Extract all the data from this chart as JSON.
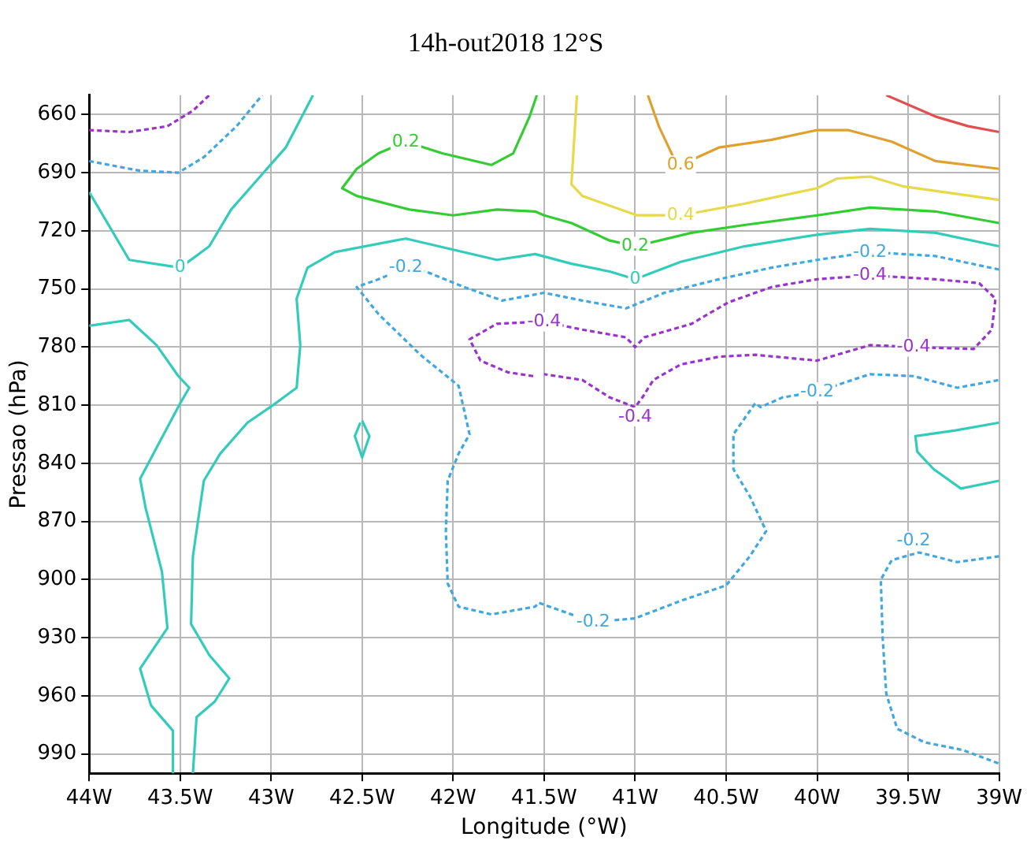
{
  "chart_data": {
    "type": "line",
    "title": "14h-out2018 12°S",
    "xlabel": "Longitude (°W)",
    "ylabel": "Pressao (hPa)",
    "xlim": [
      -44,
      -39
    ],
    "ylim": [
      1000,
      650
    ],
    "xticks": [
      {
        "value": -44,
        "label": "44W"
      },
      {
        "value": -43.5,
        "label": "43.5W"
      },
      {
        "value": -43,
        "label": "43W"
      },
      {
        "value": -42.5,
        "label": "42.5W"
      },
      {
        "value": -42,
        "label": "42W"
      },
      {
        "value": -41.5,
        "label": "41.5W"
      },
      {
        "value": -41,
        "label": "41W"
      },
      {
        "value": -40.5,
        "label": "40.5W"
      },
      {
        "value": -40,
        "label": "40W"
      },
      {
        "value": -39.5,
        "label": "39.5W"
      },
      {
        "value": -39,
        "label": "39W"
      }
    ],
    "yticks": [
      660,
      690,
      720,
      750,
      780,
      810,
      840,
      870,
      900,
      930,
      960,
      990
    ],
    "grid": true,
    "marker": "none",
    "legend": false,
    "series": [
      {
        "color": "#33ccbb",
        "line_style": "solid",
        "x": [
          -44,
          -43.78,
          -43.5,
          -43.34,
          -43.22,
          -43.07,
          -42.92,
          -42.77
        ],
        "values": [
          700,
          735,
          739,
          728,
          709,
          693,
          677,
          650
        ]
      },
      {
        "color": "#33ccbb",
        "line_style": "solid",
        "x": [
          -44,
          -43.78,
          -43.63,
          -43.51,
          -43.45,
          -43.5,
          -43.63,
          -43.72,
          -43.69,
          -43.6,
          -43.57,
          -43.72,
          -43.66,
          -43.54,
          -43.54
        ],
        "values": [
          769,
          766,
          779,
          795,
          801,
          809,
          832,
          848,
          863,
          896,
          925,
          946,
          965,
          978,
          1000
        ]
      },
      {
        "color": "#33ccbb",
        "line_style": "solid",
        "x": [
          -43.43,
          -43.41,
          -43.31,
          -43.23,
          -43.34,
          -43.44,
          -43.43,
          -43.37,
          -43.28,
          -43.13,
          -42.99,
          -42.86,
          -42.84,
          -42.86,
          -42.8,
          -42.65,
          -42.26,
          -41.76,
          -41.55,
          -41.35,
          -41.14,
          -41,
          -40.75,
          -40.4,
          -40,
          -39.71,
          -39.35,
          -39
        ],
        "values": [
          1000,
          971,
          963,
          951,
          939,
          923,
          888,
          849,
          835,
          819,
          810,
          801,
          779,
          755,
          739,
          731,
          724,
          735,
          732,
          737,
          741,
          745,
          736,
          728,
          722,
          719,
          721,
          728
        ]
      },
      {
        "color": "#33cc33",
        "line_style": "solid",
        "x": [
          -41.54,
          -41.58,
          -41.67,
          -41.79,
          -42.06,
          -42.26,
          -42.41,
          -42.53,
          -42.61,
          -42.53,
          -42.24,
          -42,
          -41.76,
          -41.55,
          -41.5,
          -41.35,
          -41.14,
          -41,
          -40.69,
          -40.4,
          -40,
          -39.71,
          -39.35,
          -39
        ],
        "values": [
          650,
          661,
          680,
          686,
          680,
          674,
          680,
          688,
          698,
          702,
          709,
          712,
          709,
          710,
          712,
          716,
          725,
          728,
          721,
          717,
          712,
          708,
          710,
          716
        ]
      },
      {
        "color": "#e6d94a",
        "line_style": "solid",
        "x": [
          -41.32,
          -41.35,
          -41.29,
          -40.99,
          -40.75,
          -40.4,
          -40,
          -39.89,
          -39.71,
          -39.53,
          -39
        ],
        "values": [
          650,
          696,
          702,
          712,
          712,
          706,
          698,
          693,
          692,
          697,
          704
        ]
      },
      {
        "color": "#e0a030",
        "line_style": "solid",
        "x": [
          -40.93,
          -40.87,
          -40.78,
          -40.75,
          -40.54,
          -40.25,
          -40,
          -39.83,
          -39.59,
          -39.35,
          -39
        ],
        "values": [
          650,
          666,
          684,
          686,
          677,
          673,
          668,
          668,
          674,
          684,
          688
        ]
      },
      {
        "color": "#e05050",
        "line_style": "solid",
        "x": [
          -39.62,
          -39.35,
          -39.17,
          -39
        ],
        "values": [
          650,
          661,
          666,
          669
        ]
      },
      {
        "color": "#3fa8e0",
        "line_style": "dashed",
        "x": [
          -39,
          -39.35,
          -39.71,
          -40,
          -40.25,
          -40.54,
          -40.84,
          -41.05,
          -41.29,
          -41.5,
          -41.73,
          -41.94,
          -42.15,
          -42.26,
          -42.41,
          -42.53,
          -42.41,
          -42.18,
          -41.97,
          -41.91,
          -41.97,
          -42.03,
          -42.04,
          -42.03,
          -41.97,
          -41.79,
          -41.55,
          -41.53,
          -41.35,
          -41.23,
          -41,
          -40.75,
          -40.5,
          -40.37,
          -40.28,
          -40.37,
          -40.46,
          -40.46,
          -40.34,
          -40.31,
          -40.19,
          -40,
          -39.71,
          -39.47,
          -39.23,
          -39
        ],
        "values": [
          740,
          733,
          731,
          735,
          739,
          745,
          752,
          760,
          756,
          752,
          756,
          749,
          741,
          739,
          745,
          749,
          763,
          784,
          800,
          825,
          835,
          849,
          875,
          902,
          914,
          918,
          914,
          912,
          918,
          922,
          920,
          911,
          903,
          888,
          875,
          857,
          843,
          825,
          809,
          811,
          806,
          803,
          794,
          795,
          801,
          797
        ]
      },
      {
        "color": "#9933cc",
        "line_style": "dashed",
        "x": [
          -41.56,
          -41.7,
          -41.85,
          -41.91,
          -41.76,
          -41.55,
          -41.5,
          -41.29,
          -41.05,
          -41,
          -40.95,
          -40.69,
          -40.49,
          -40.25,
          -40,
          -39.71,
          -39.35,
          -39.11,
          -39.02,
          -39.04,
          -39.14,
          -39.47,
          -39.71,
          -40,
          -40.34,
          -40.54,
          -40.75,
          -40.9,
          -40.96,
          -41,
          -41.14,
          -41.29,
          -41.5
        ],
        "values": [
          795,
          793,
          787,
          776,
          768,
          767,
          767,
          771,
          775,
          780,
          775,
          768,
          757,
          749,
          745,
          743,
          745,
          747,
          755,
          771,
          781,
          780,
          779,
          787,
          784,
          785,
          789,
          797,
          806,
          811,
          806,
          797,
          794
        ]
      },
      {
        "color": "#9933cc",
        "line_style": "dashed",
        "x": [
          -44,
          -43.78,
          -43.57,
          -43.43,
          -43.34
        ],
        "values": [
          668,
          669,
          666,
          658,
          650
        ]
      },
      {
        "color": "#3fa8e0",
        "line_style": "dashed",
        "x": [
          -44,
          -43.72,
          -43.51,
          -43.37,
          -43.19,
          -43.05
        ],
        "values": [
          684,
          689,
          690,
          682,
          666,
          650
        ]
      },
      {
        "color": "#33ccbb",
        "line_style": "solid",
        "x": [
          -42.5,
          -42.46,
          -42.5,
          -42.54,
          -42.51
        ],
        "values": [
          818,
          826,
          837,
          826,
          819
        ]
      },
      {
        "color": "#33ccbb",
        "line_style": "solid",
        "x": [
          -39,
          -39.24,
          -39.46,
          -39.45,
          -39.36,
          -39.21,
          -39
        ],
        "values": [
          819,
          823,
          826,
          834,
          843,
          853,
          849
        ]
      },
      {
        "color": "#3fa8e0",
        "line_style": "dashed",
        "x": [
          -39,
          -39.23,
          -39.44,
          -39.59,
          -39.65,
          -39.64,
          -39.62,
          -39.56,
          -39.41,
          -39.2,
          -39
        ],
        "values": [
          888,
          891,
          886,
          890,
          900,
          930,
          959,
          977,
          984,
          988,
          995
        ]
      }
    ],
    "annotations": [
      {
        "text": "0",
        "x": -43.5,
        "y": 739
      },
      {
        "text": "0",
        "x": -41,
        "y": 745
      },
      {
        "text": "0.2",
        "x": -42.26,
        "y": 674
      },
      {
        "text": "0.2",
        "x": -41,
        "y": 728
      },
      {
        "text": "0.4",
        "x": -40.75,
        "y": 712
      },
      {
        "text": "0.6",
        "x": -40.75,
        "y": 686
      },
      {
        "text": "-0.2",
        "x": -42.26,
        "y": 739
      },
      {
        "text": "-0.2",
        "x": -39.71,
        "y": 731
      },
      {
        "text": "-0.2",
        "x": -41.23,
        "y": 922
      },
      {
        "text": "-0.2",
        "x": -40,
        "y": 803
      },
      {
        "text": "-0.2",
        "x": -39.47,
        "y": 880
      },
      {
        "text": "-0.4",
        "x": -41.5,
        "y": 767
      },
      {
        "text": "-0.4",
        "x": -39.71,
        "y": 743
      },
      {
        "text": "-0.4",
        "x": -39.47,
        "y": 780
      },
      {
        "text": "-0.4",
        "x": -41,
        "y": 816
      }
    ]
  }
}
